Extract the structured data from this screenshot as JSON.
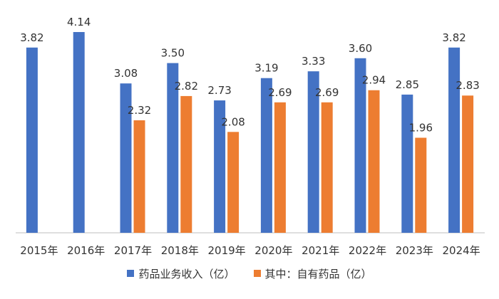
{
  "chart_data": {
    "type": "bar",
    "categories": [
      "2015年",
      "2016年",
      "2017年",
      "2018年",
      "2019年",
      "2020年",
      "2021年",
      "2022年",
      "2023年",
      "2024年"
    ],
    "series": [
      {
        "name": "药品业务收入（亿）",
        "color": "#4472C4",
        "values": [
          3.82,
          4.14,
          3.08,
          3.5,
          2.73,
          3.19,
          3.33,
          3.6,
          2.85,
          3.82
        ],
        "labels": [
          "3.82",
          "4.14",
          "3.08",
          "3.50",
          "2.73",
          "3.19",
          "3.33",
          "3.60",
          "2.85",
          "3.82"
        ]
      },
      {
        "name": "其中：自有药品（亿）",
        "color": "#ED7D31",
        "values": [
          null,
          null,
          2.32,
          2.82,
          2.08,
          2.69,
          2.69,
          2.94,
          1.96,
          2.83
        ],
        "labels": [
          "",
          "",
          "2.32",
          "2.82",
          "2.08",
          "2.69",
          "2.69",
          "2.94",
          "1.96",
          "2.83"
        ]
      }
    ],
    "ylim": [
      0,
      4.14
    ],
    "grid": false,
    "legend_position": "bottom"
  }
}
